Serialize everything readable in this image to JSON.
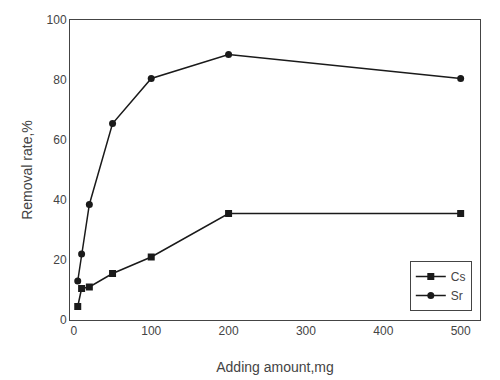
{
  "chart_data": {
    "type": "line",
    "xlabel": "Adding amount,mg",
    "ylabel": "Removal rate,%",
    "x": [
      5,
      10,
      20,
      50,
      100,
      200,
      500
    ],
    "series": [
      {
        "name": "Cs",
        "color": "#1a1a1a",
        "marker": "square",
        "values": [
          4.5,
          10.5,
          11.0,
          15.5,
          21.0,
          35.5,
          35.5
        ]
      },
      {
        "name": "Sr",
        "color": "#1a1a1a",
        "marker": "circle",
        "values": [
          13.0,
          22.0,
          38.5,
          65.5,
          80.5,
          88.5,
          80.5
        ]
      }
    ],
    "xlim": [
      -5,
      525
    ],
    "ylim": [
      0,
      100
    ],
    "xticks": [
      0,
      100,
      200,
      300,
      400,
      500
    ],
    "yticks": [
      0,
      20,
      40,
      60,
      80,
      100
    ],
    "grid": false,
    "legend": "lower right"
  }
}
